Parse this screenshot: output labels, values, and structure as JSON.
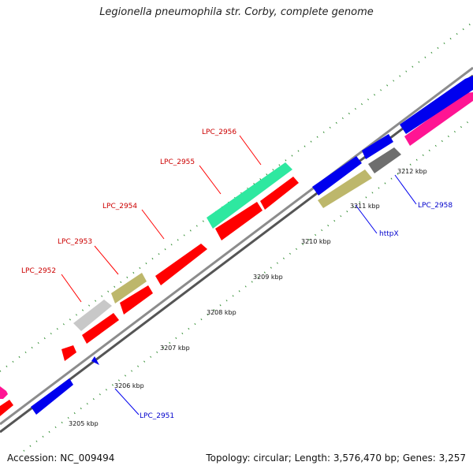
{
  "title": "Legionella pneumophila str. Corby, complete genome",
  "footer": {
    "accession": "Accession: NC_009494",
    "stats": "Topology: circular; Length: 3,576,470 bp; Genes: 3,257"
  },
  "colors": {
    "red": "#ff0000",
    "blue": "#0000ee",
    "magenta": "#ff1493",
    "khaki": "#bdb76b",
    "silver": "#c8c8c8",
    "gray": "#6e6e6e",
    "mint": "#2ee8a0",
    "tick": "#2e8b2e",
    "backbone": "#8c8c8c",
    "label_red": "#cc0000",
    "label_blue": "#0000cc"
  },
  "ruler": [
    {
      "label": "3205 kbp"
    },
    {
      "label": "3206 kbp"
    },
    {
      "label": "3207 kbp"
    },
    {
      "label": "3208 kbp"
    },
    {
      "label": "3209 kbp"
    },
    {
      "label": "3210 kbp"
    },
    {
      "label": "3211 kbp"
    },
    {
      "label": "3212 kbp"
    }
  ],
  "gene_labels": [
    {
      "name": "LPC_2952"
    },
    {
      "name": "LPC_2953"
    },
    {
      "name": "LPC_2954"
    },
    {
      "name": "LPC_2955"
    },
    {
      "name": "LPC_2956"
    },
    {
      "name": "LPC_2951"
    },
    {
      "name": "httpX"
    },
    {
      "name": "LPC_2958"
    }
  ]
}
